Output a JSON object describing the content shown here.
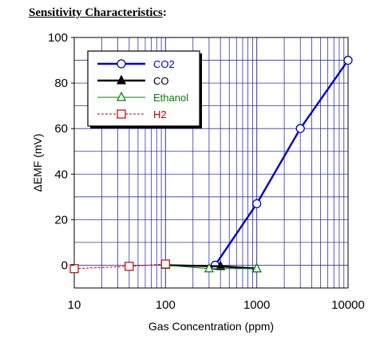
{
  "page": {
    "heading_main": "Sensitivity Characteristics",
    "heading_suffix": ":"
  },
  "chart_data": {
    "type": "line",
    "title": "",
    "xlabel": "Gas Concentration (ppm)",
    "ylabel": "ΔEMF (mV)",
    "xscale": "log",
    "xlim": [
      10,
      10000
    ],
    "ylim": [
      -10,
      100
    ],
    "x_ticks": [
      "10",
      "100",
      "1000",
      "10000"
    ],
    "y_ticks": [
      "0",
      "20",
      "40",
      "60",
      "80",
      "100"
    ],
    "grid": true,
    "legend_position": "top-left",
    "series": [
      {
        "name": "CO2",
        "color": "#0000cc",
        "marker": "circle-open",
        "line": "solid-thick",
        "points": [
          [
            350,
            0
          ],
          [
            1000,
            27
          ],
          [
            3000,
            60
          ],
          [
            10000,
            90
          ]
        ]
      },
      {
        "name": "CO",
        "color": "#000000",
        "marker": "triangle-filled",
        "line": "solid-thick",
        "points": [
          [
            100,
            0
          ],
          [
            400,
            -0.5
          ],
          [
            1000,
            -1.5
          ]
        ]
      },
      {
        "name": "Ethanol",
        "color": "#008000",
        "marker": "triangle-open",
        "line": "solid-thin",
        "points": [
          [
            100,
            0
          ],
          [
            300,
            -1.5
          ],
          [
            1000,
            -1.5
          ]
        ]
      },
      {
        "name": "H2",
        "color": "#c00000",
        "marker": "square-open",
        "line": "dashed",
        "points": [
          [
            10,
            -1.5
          ],
          [
            40,
            -0.5
          ],
          [
            100,
            0.5
          ]
        ]
      }
    ]
  }
}
